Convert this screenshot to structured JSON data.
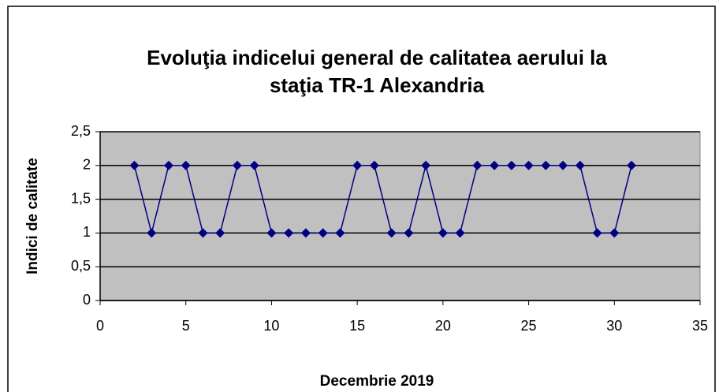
{
  "chart_data": {
    "type": "line",
    "title": "Evoluţia indicelui general de calitatea aerului la staţia TR-1 Alexandria",
    "x_label": "Decembrie 2019",
    "y_label": "Indici de calitate",
    "x": [
      2,
      3,
      4,
      5,
      6,
      7,
      8,
      9,
      10,
      11,
      12,
      13,
      14,
      15,
      16,
      17,
      18,
      19,
      20,
      21,
      22,
      23,
      24,
      25,
      26,
      27,
      28,
      29,
      30,
      31
    ],
    "values": [
      2,
      1,
      2,
      2,
      1,
      1,
      2,
      2,
      1,
      1,
      1,
      1,
      1,
      2,
      2,
      1,
      1,
      2,
      1,
      1,
      2,
      2,
      2,
      2,
      2,
      2,
      2,
      1,
      1,
      2
    ],
    "color": "#000080",
    "plot_background": "#c0c0c0",
    "xlim": [
      0,
      35
    ],
    "xticks": [
      0,
      5,
      10,
      15,
      20,
      25,
      30,
      35
    ],
    "ylim": [
      0,
      2.5
    ],
    "yticks": [
      0,
      {
        "value": 0.5,
        "label": "0,5"
      },
      1,
      {
        "value": 1.5,
        "label": "1,5"
      },
      2,
      {
        "value": 2.5,
        "label": "2,5"
      }
    ],
    "grid": true
  }
}
